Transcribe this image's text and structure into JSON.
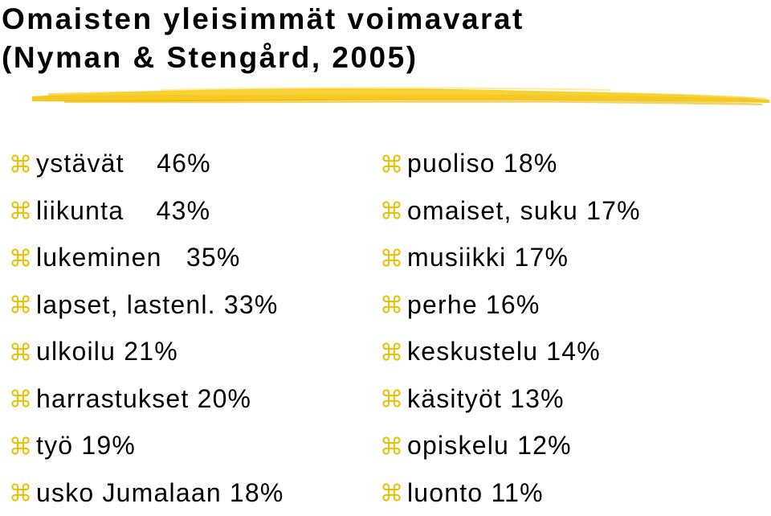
{
  "title": {
    "line1": "Omaisten yleisimmät voimavarat",
    "line2": "(Nyman & Stengård, 2005)"
  },
  "colors": {
    "accent": "#F5C518",
    "bullet": "#E8C000",
    "text": "#000000",
    "background": "#FFFFFF"
  },
  "bullet_icon": "command-key-icon",
  "left_items": [
    "ystävät    46%",
    "liikunta    43%",
    "lukeminen   35%",
    "lapset, lastenl. 33%",
    "ulkoilu 21%",
    "harrastukset 20%",
    "työ 19%",
    "usko Jumalaan 18%"
  ],
  "right_items": [
    "puoliso 18%",
    "omaiset, suku 17%",
    "musiikki 17%",
    "perhe 16%",
    "keskustelu 14%",
    "käsityöt 13%",
    "opiskelu 12%",
    "luonto 11%"
  ]
}
